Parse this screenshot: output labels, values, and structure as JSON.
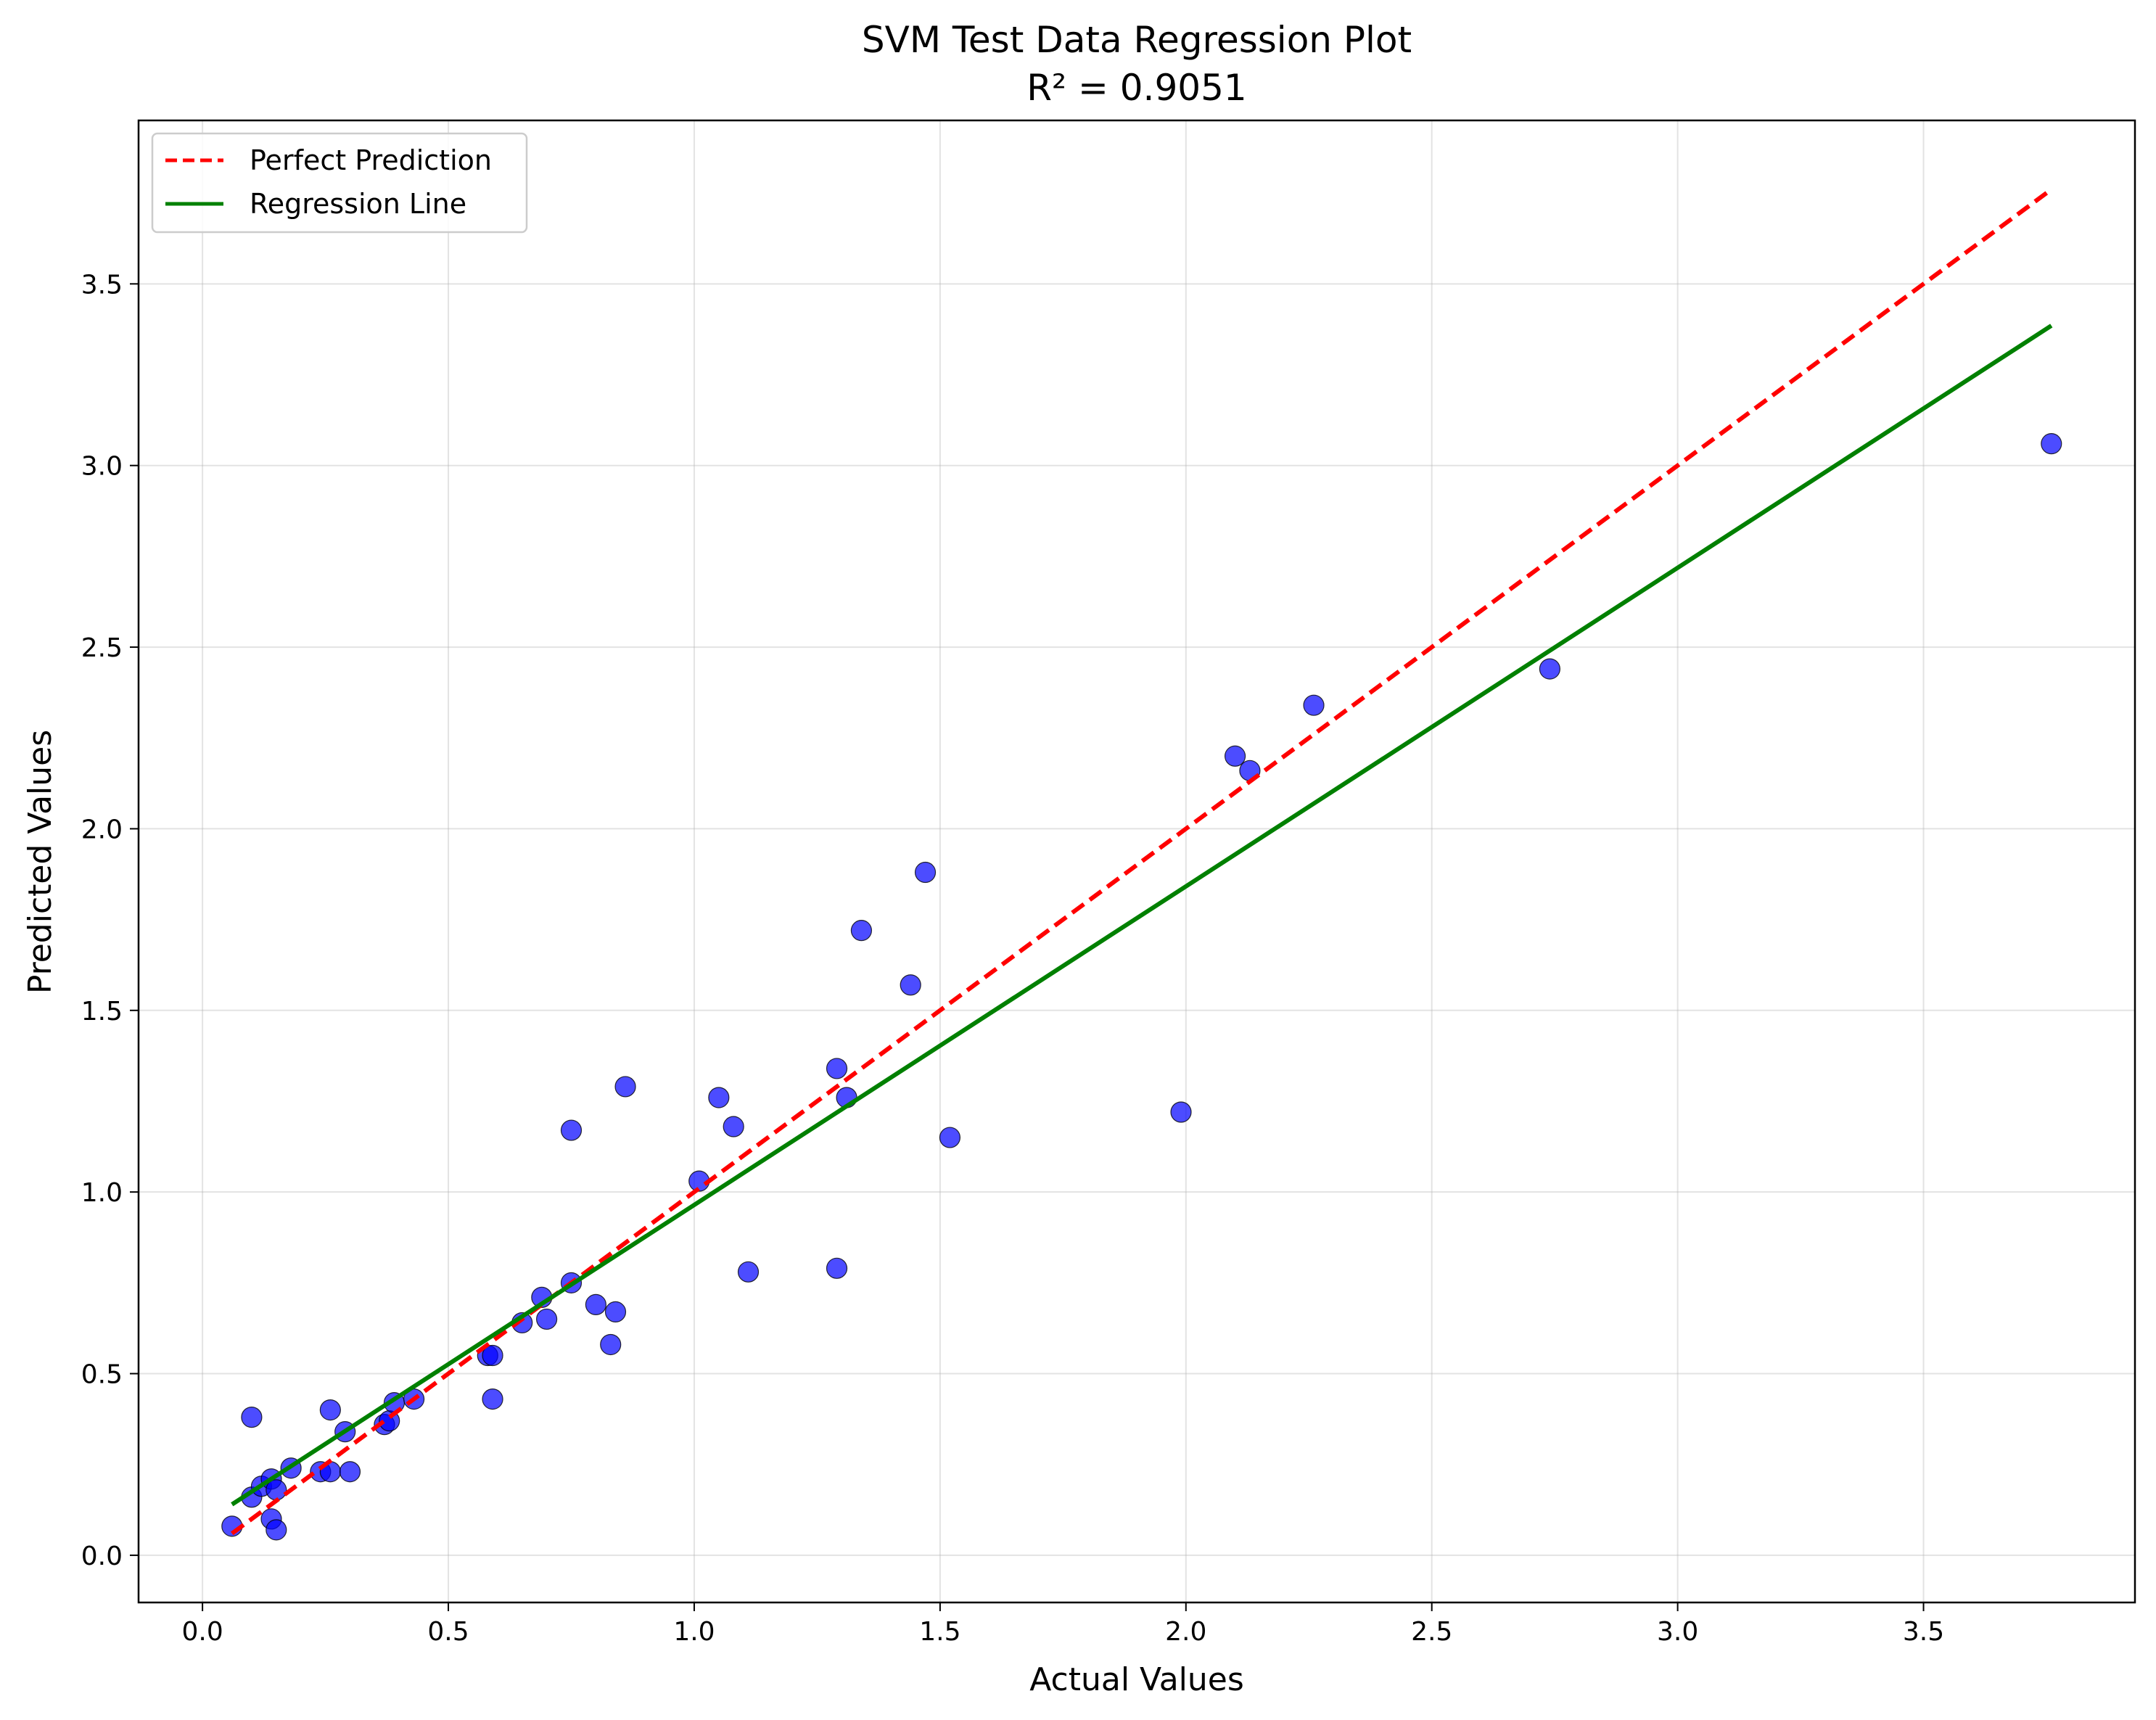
{
  "chart_data": {
    "type": "scatter",
    "title": "SVM Test Data Regression Plot",
    "subtitle": "R² = 0.9051",
    "xlabel": "Actual Values",
    "ylabel": "Predicted Values",
    "xlim": [
      -0.13,
      3.93
    ],
    "ylim": [
      -0.13,
      3.95
    ],
    "xticks": [
      0.0,
      0.5,
      1.0,
      1.5,
      2.0,
      2.5,
      3.0,
      3.5
    ],
    "xtick_labels": [
      "0.0",
      "0.5",
      "1.0",
      "1.5",
      "2.0",
      "2.5",
      "3.0",
      "3.5"
    ],
    "yticks": [
      0.0,
      0.5,
      1.0,
      1.5,
      2.0,
      2.5,
      3.0,
      3.5
    ],
    "ytick_labels": [
      "0.0",
      "0.5",
      "1.0",
      "1.5",
      "2.0",
      "2.5",
      "3.0",
      "3.5"
    ],
    "grid": true,
    "legend_position": "top-left",
    "series": [
      {
        "kind": "scatter",
        "color": "#0000ff",
        "points": [
          [
            0.06,
            0.08
          ],
          [
            0.1,
            0.38
          ],
          [
            0.1,
            0.16
          ],
          [
            0.12,
            0.19
          ],
          [
            0.14,
            0.21
          ],
          [
            0.14,
            0.1
          ],
          [
            0.15,
            0.07
          ],
          [
            0.15,
            0.18
          ],
          [
            0.18,
            0.24
          ],
          [
            0.24,
            0.23
          ],
          [
            0.26,
            0.4
          ],
          [
            0.26,
            0.23
          ],
          [
            0.29,
            0.34
          ],
          [
            0.3,
            0.23
          ],
          [
            0.37,
            0.36
          ],
          [
            0.38,
            0.37
          ],
          [
            0.39,
            0.42
          ],
          [
            0.43,
            0.43
          ],
          [
            0.58,
            0.55
          ],
          [
            0.59,
            0.55
          ],
          [
            0.59,
            0.43
          ],
          [
            0.65,
            0.64
          ],
          [
            0.69,
            0.71
          ],
          [
            0.7,
            0.65
          ],
          [
            0.75,
            0.75
          ],
          [
            0.75,
            1.17
          ],
          [
            0.8,
            0.69
          ],
          [
            0.83,
            0.58
          ],
          [
            0.84,
            0.67
          ],
          [
            0.86,
            1.29
          ],
          [
            1.01,
            1.03
          ],
          [
            1.05,
            1.26
          ],
          [
            1.08,
            1.18
          ],
          [
            1.11,
            0.78
          ],
          [
            1.29,
            1.34
          ],
          [
            1.29,
            0.79
          ],
          [
            1.31,
            1.26
          ],
          [
            1.34,
            1.72
          ],
          [
            1.44,
            1.57
          ],
          [
            1.47,
            1.88
          ],
          [
            1.52,
            1.15
          ],
          [
            1.99,
            1.22
          ],
          [
            2.1,
            2.2
          ],
          [
            2.13,
            2.16
          ],
          [
            2.26,
            2.34
          ],
          [
            2.74,
            2.44
          ],
          [
            3.76,
            3.06
          ]
        ]
      },
      {
        "kind": "line",
        "name": "Perfect Prediction",
        "color": "#ff0000",
        "dashed": true,
        "x": [
          0.06,
          3.76
        ],
        "y": [
          0.06,
          3.76
        ]
      },
      {
        "kind": "line",
        "name": "Regression Line",
        "color": "#008000",
        "dashed": false,
        "x": [
          0.06,
          3.76
        ],
        "y": [
          0.14,
          3.385
        ]
      }
    ]
  }
}
